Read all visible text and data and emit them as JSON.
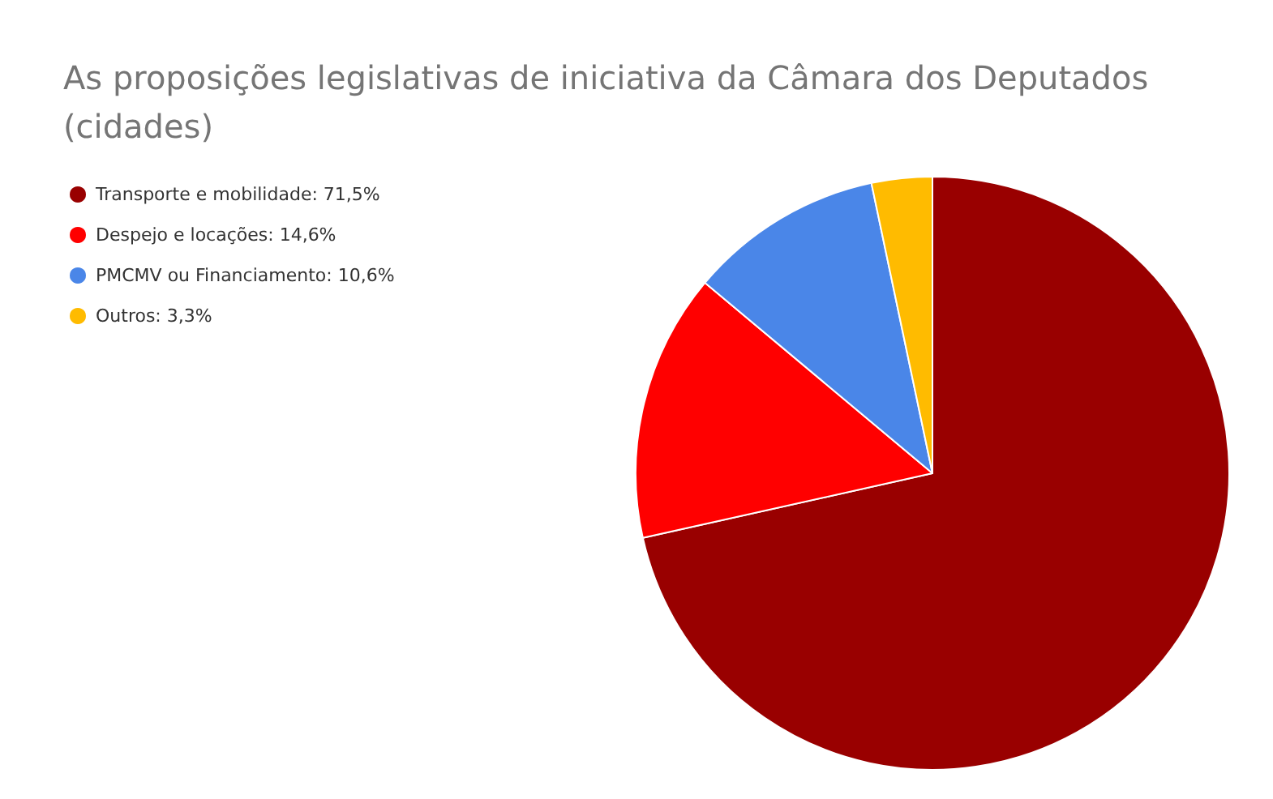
{
  "chart_data": {
    "type": "pie",
    "title": "As proposições legislativas de iniciativa da Câmara dos Deputados (cidades)",
    "categories": [
      "Transporte e mobilidade",
      "Despejo e locações",
      "PMCMV ou Financiamento",
      "Outros"
    ],
    "values": [
      71.5,
      14.6,
      10.6,
      3.3
    ],
    "value_labels": [
      "71,5%",
      "14,6%",
      "10,6%",
      "3,3%"
    ],
    "colors": [
      "#990000",
      "#ff0000",
      "#4a86e8",
      "#ffbb00"
    ],
    "legend": "top left"
  }
}
